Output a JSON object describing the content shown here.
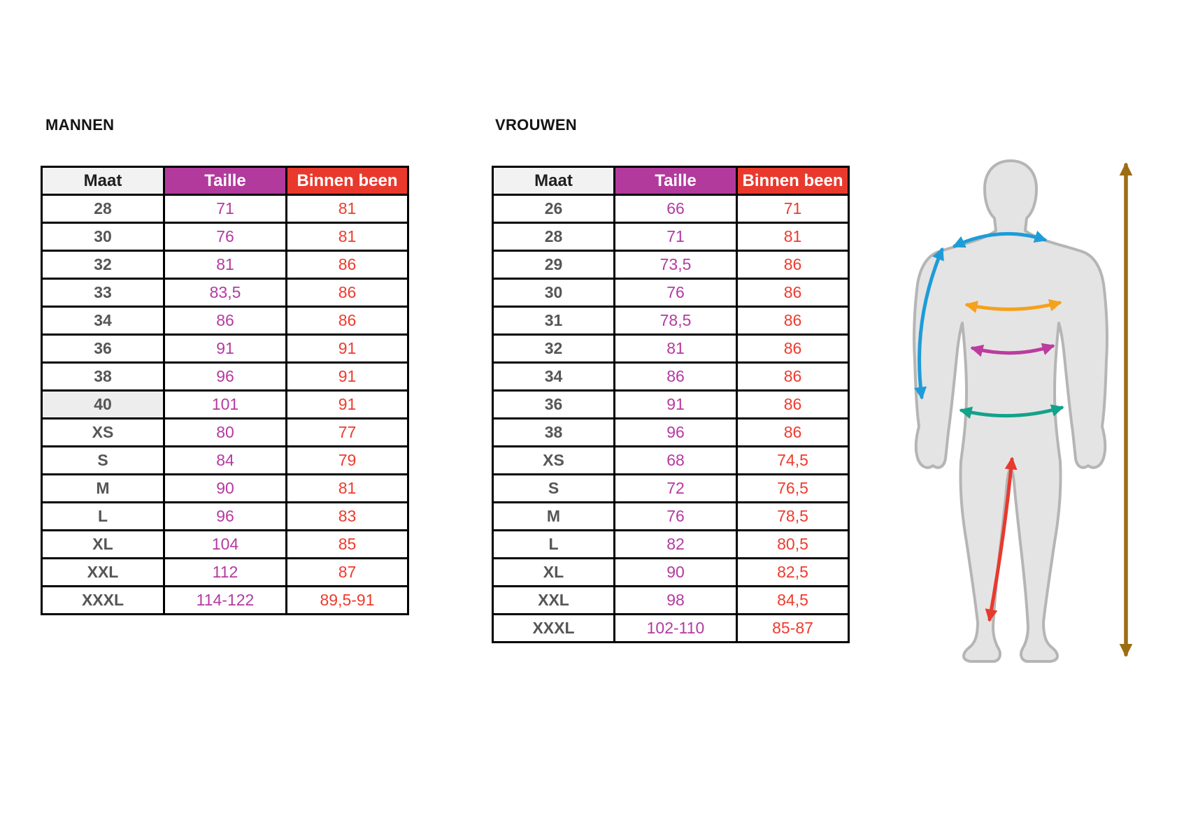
{
  "men_table": {
    "title": "MANNEN",
    "headers": [
      "Maat",
      "Taille",
      "Binnen been"
    ],
    "rows": [
      [
        "28",
        "71",
        "81"
      ],
      [
        "30",
        "76",
        "81"
      ],
      [
        "32",
        "81",
        "86"
      ],
      [
        "33",
        "83,5",
        "86"
      ],
      [
        "34",
        "86",
        "86"
      ],
      [
        "36",
        "91",
        "91"
      ],
      [
        "38",
        "96",
        "91"
      ],
      [
        "40",
        "101",
        "91"
      ],
      [
        "XS",
        "80",
        "77"
      ],
      [
        "S",
        "84",
        "79"
      ],
      [
        "M",
        "90",
        "81"
      ],
      [
        "L",
        "96",
        "83"
      ],
      [
        "XL",
        "104",
        "85"
      ],
      [
        "XXL",
        "112",
        "87"
      ],
      [
        "XXXL",
        "114-122",
        "89,5-91"
      ]
    ],
    "highlighted_row": 7
  },
  "women_table": {
    "title": "VROUWEN",
    "headers": [
      "Maat",
      "Taille",
      "Binnen been"
    ],
    "rows": [
      [
        "26",
        "66",
        "71"
      ],
      [
        "28",
        "71",
        "81"
      ],
      [
        "29",
        "73,5",
        "86"
      ],
      [
        "30",
        "76",
        "86"
      ],
      [
        "31",
        "78,5",
        "86"
      ],
      [
        "32",
        "81",
        "86"
      ],
      [
        "34",
        "86",
        "86"
      ],
      [
        "36",
        "91",
        "86"
      ],
      [
        "38",
        "96",
        "86"
      ],
      [
        "XS",
        "68",
        "74,5"
      ],
      [
        "S",
        "72",
        "76,5"
      ],
      [
        "M",
        "76",
        "78,5"
      ],
      [
        "L",
        "82",
        "80,5"
      ],
      [
        "XL",
        "90",
        "82,5"
      ],
      [
        "XXL",
        "98",
        "84,5"
      ],
      [
        "XXXL",
        "102-110",
        "85-87"
      ]
    ],
    "highlighted_row": -1
  },
  "colors": {
    "maat_header_bg": "#f2f2f2",
    "taille_accent": "#b23a9c",
    "binnen_been_accent": "#e9392d",
    "maat_text": "#565656",
    "table_border": "#000000",
    "body_fill": "#e4e4e4",
    "body_outline": "#b5b5b5",
    "arrow_blue": "#1e9cd8",
    "arrow_orange": "#f5a11b",
    "arrow_magenta": "#bc3c9e",
    "arrow_teal": "#13a28a",
    "arrow_red": "#e8392e",
    "arrow_brown": "#9c6d12"
  },
  "figure": {
    "measurement_arrows": [
      {
        "name": "shoulder-width-arrow",
        "color": "#1e9cd8"
      },
      {
        "name": "arm-length-arrow",
        "color": "#1e9cd8"
      },
      {
        "name": "chest-arrow",
        "color": "#f5a11b"
      },
      {
        "name": "waist-arrow",
        "color": "#bc3c9e"
      },
      {
        "name": "hip-arrow",
        "color": "#13a28a"
      },
      {
        "name": "inside-leg-arrow",
        "color": "#e8392e"
      },
      {
        "name": "body-height-arrow",
        "color": "#9c6d12"
      }
    ]
  }
}
